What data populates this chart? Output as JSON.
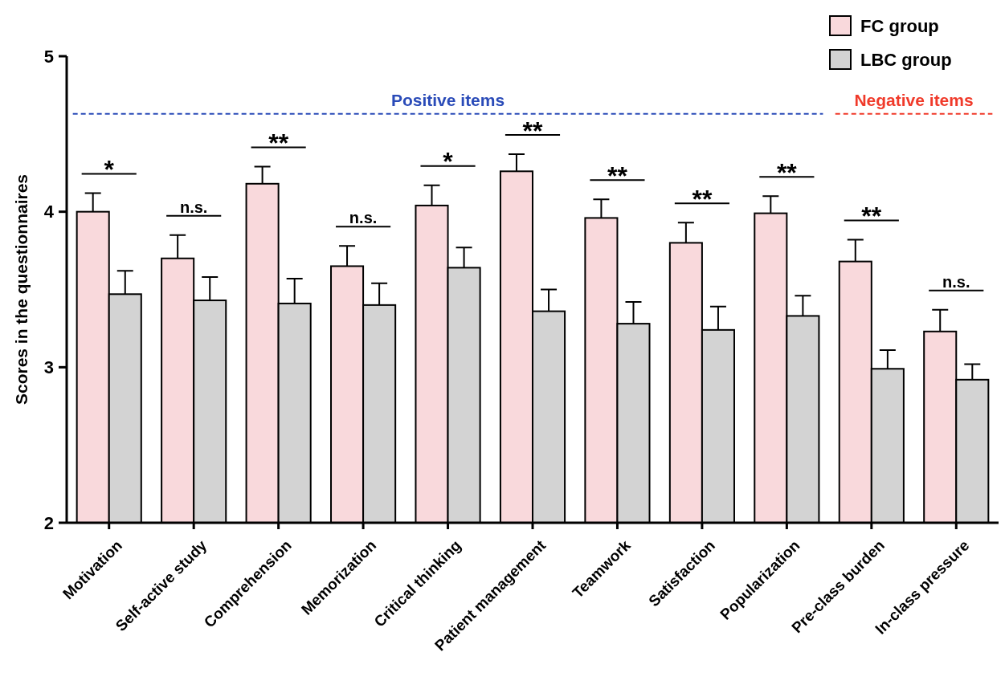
{
  "chart_data": {
    "type": "bar",
    "ylabel": "Scores in the questionnaires",
    "categories": [
      "Motivation",
      "Self-active study",
      "Comprehension",
      "Memorization",
      "Critical thinking",
      "Patient management",
      "Teamwork",
      "Satisfaction",
      "Popularization",
      "Pre-class burden",
      "In-class pressure"
    ],
    "series": [
      {
        "name": "FC group",
        "color": "#f9d9dc",
        "values": [
          4.0,
          3.7,
          4.18,
          3.65,
          4.04,
          4.26,
          3.96,
          3.8,
          3.99,
          3.68,
          3.23
        ],
        "errors": [
          [
            4.0,
            4.12
          ],
          [
            3.7,
            3.85
          ],
          [
            4.18,
            4.29
          ],
          [
            3.65,
            3.78
          ],
          [
            4.04,
            4.17
          ],
          [
            4.26,
            4.37
          ],
          [
            3.96,
            4.08
          ],
          [
            3.8,
            3.93
          ],
          [
            3.99,
            4.1
          ],
          [
            3.68,
            3.82
          ],
          [
            3.23,
            3.37
          ]
        ]
      },
      {
        "name": "LBC group",
        "color": "#d3d3d3",
        "values": [
          3.47,
          3.43,
          3.41,
          3.4,
          3.64,
          3.36,
          3.28,
          3.24,
          3.33,
          2.99,
          2.92
        ],
        "errors": [
          [
            3.47,
            3.62
          ],
          [
            3.43,
            3.58
          ],
          [
            3.41,
            3.57
          ],
          [
            3.4,
            3.54
          ],
          [
            3.64,
            3.77
          ],
          [
            3.36,
            3.5
          ],
          [
            3.28,
            3.42
          ],
          [
            3.24,
            3.39
          ],
          [
            3.33,
            3.46
          ],
          [
            2.99,
            3.11
          ],
          [
            2.92,
            3.02
          ]
        ]
      }
    ],
    "ylim": [
      2,
      5
    ],
    "yticks": [
      2,
      3,
      4,
      5
    ],
    "grid": false,
    "legend": "top right",
    "ref_lines": [
      {
        "axis": "y",
        "value": 4.63,
        "label": "Positive items",
        "color": "#2a4bb8",
        "line_style": "dashed"
      },
      {
        "axis": "y",
        "value": 4.63,
        "label": "Negative items",
        "color": "#f03a2a",
        "line_style": "dashed"
      }
    ],
    "annotations": [
      "*",
      "n.s.",
      "**",
      "n.s.",
      "*",
      "**",
      "**",
      "**",
      "**",
      "**",
      "n.s."
    ]
  }
}
